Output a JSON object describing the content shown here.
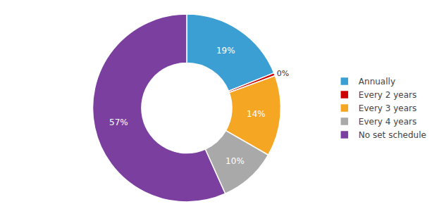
{
  "chart_data": {
    "type": "pie",
    "categories": [
      "Annually",
      "Every 2 years",
      "Every 3 years",
      "Every 4 years",
      "No set schedule"
    ],
    "values": [
      19,
      0.5,
      14,
      10,
      57
    ],
    "value_labels": [
      "19%",
      "0%",
      "14%",
      "10%",
      "57%"
    ],
    "colors": [
      "#3b9fd4",
      "#cc0000",
      "#f5a623",
      "#a9a9a9",
      "#7b3fa0"
    ],
    "data_labels": true,
    "legend": "right"
  }
}
